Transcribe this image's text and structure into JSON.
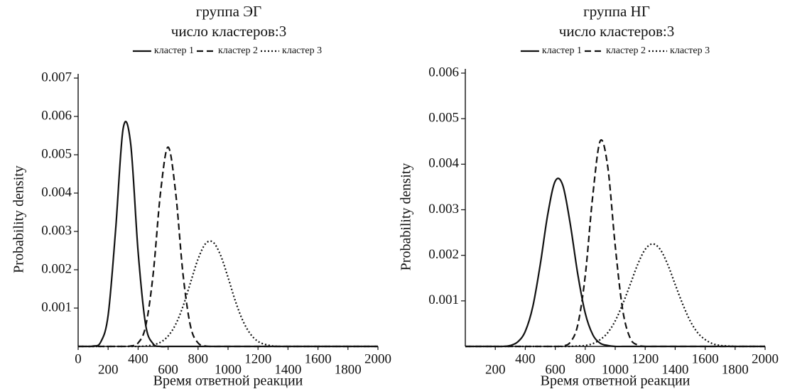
{
  "chart_data": [
    {
      "type": "line",
      "title": "группа ЭГ",
      "subtitle": "число кластеров:3",
      "x_label": "Время ответной реакции",
      "y_label": "Probability density",
      "x": [
        0,
        50,
        100,
        150,
        200,
        250,
        300,
        350,
        400,
        450,
        500,
        550,
        600,
        650,
        700,
        750,
        800,
        850,
        900,
        950,
        1000,
        1050,
        1100,
        1150,
        1200,
        1250,
        1300,
        1350,
        1400,
        1450,
        1500,
        1550,
        1600,
        1650,
        1700,
        1750,
        1800,
        1850,
        1900,
        1950,
        2000
      ],
      "series": [
        {
          "name": "кластер 1",
          "color": "#111111",
          "dash": "solid",
          "values": [
            0,
            0,
            1e-05,
            0.00011,
            0.00081,
            0.00304,
            0.00568,
            0.0053,
            0.00247,
            0.00057,
            7e-05,
            0,
            0,
            0,
            0,
            0,
            0,
            0,
            0,
            0,
            0,
            0,
            0,
            0,
            0,
            0,
            0,
            0,
            0,
            0,
            0,
            0,
            0,
            0,
            0,
            0,
            0,
            0,
            0,
            0,
            0
          ]
        },
        {
          "name": "кластер 2",
          "color": "#111111",
          "dash": "dashed",
          "values": [
            0,
            0,
            0,
            0,
            0,
            0,
            0,
            1e-05,
            9e-05,
            0.00052,
            0.00187,
            0.00403,
            0.0052,
            0.00403,
            0.00187,
            0.00052,
            9e-05,
            1e-05,
            0,
            0,
            0,
            0,
            0,
            0,
            0,
            0,
            0,
            0,
            0,
            0,
            0,
            0,
            0,
            0,
            0,
            0,
            0,
            0,
            0,
            0,
            0
          ]
        },
        {
          "name": "кластер 3",
          "color": "#111111",
          "dash": "dotted",
          "values": [
            0,
            0,
            0,
            0,
            0,
            0,
            0,
            0,
            0,
            1e-05,
            4e-05,
            0.00011,
            0.00027,
            0.00057,
            0.00105,
            0.00167,
            0.00228,
            0.00268,
            0.00272,
            0.00238,
            0.0018,
            0.00117,
            0.00066,
            0.00032,
            0.00013,
            5e-05,
            1e-05,
            0,
            0,
            0,
            0,
            0,
            0,
            0,
            0,
            0,
            0,
            0,
            0,
            0,
            0
          ]
        }
      ],
      "xlim": [
        0,
        2000
      ],
      "xticks": [
        0,
        200,
        400,
        600,
        800,
        1000,
        1200,
        1400,
        1600,
        1800,
        2000
      ],
      "ylim": [
        0,
        0.007
      ],
      "yticks": [
        0.001,
        0.002,
        0.003,
        0.004,
        0.005,
        0.006,
        0.007
      ],
      "legend": "top",
      "grid": false
    },
    {
      "type": "line",
      "title": "группа НГ",
      "subtitle": "число кластеров:3",
      "x_label": "Время ответной реакции",
      "y_label": "Probability density",
      "x": [
        0,
        50,
        100,
        150,
        200,
        250,
        300,
        350,
        400,
        450,
        500,
        550,
        600,
        650,
        700,
        750,
        800,
        850,
        900,
        950,
        1000,
        1050,
        1100,
        1150,
        1200,
        1250,
        1300,
        1350,
        1400,
        1450,
        1500,
        1550,
        1600,
        1650,
        1700,
        1750,
        1800,
        1850,
        1900,
        1950,
        2000
      ],
      "series": [
        {
          "name": "кластер 1",
          "color": "#111111",
          "dash": "solid",
          "values": [
            0,
            0,
            0,
            0,
            0,
            0,
            2e-05,
            0.0001,
            0.00033,
            0.00087,
            0.0018,
            0.0029,
            0.00363,
            0.00354,
            0.00269,
            0.00159,
            0.00073,
            0.00026,
            7e-05,
            2e-05,
            0,
            0,
            0,
            0,
            0,
            0,
            0,
            0,
            0,
            0,
            0,
            0,
            0,
            0,
            0,
            0,
            0,
            0,
            0,
            0,
            0
          ]
        },
        {
          "name": "кластер 2",
          "color": "#111111",
          "dash": "dashed",
          "values": [
            0,
            0,
            0,
            0,
            0,
            0,
            0,
            0,
            0,
            0,
            0,
            0,
            0,
            1e-05,
            9e-05,
            0.00047,
            0.00155,
            0.0033,
            0.00451,
            0.00395,
            0.00221,
            0.0008,
            0.00018,
            3e-05,
            0,
            0,
            0,
            0,
            0,
            0,
            0,
            0,
            0,
            0,
            0,
            0,
            0,
            0,
            0,
            0,
            0
          ]
        },
        {
          "name": "кластер 3",
          "color": "#111111",
          "dash": "dotted",
          "values": [
            0,
            0,
            0,
            0,
            0,
            0,
            0,
            0,
            0,
            0,
            0,
            0,
            0,
            0,
            0,
            1e-05,
            2e-05,
            6e-05,
            0.00015,
            0.0003,
            0.00056,
            0.00093,
            0.00136,
            0.0018,
            0.00213,
            0.00225,
            0.00213,
            0.0018,
            0.00136,
            0.00093,
            0.00056,
            0.0003,
            0.00015,
            6e-05,
            2e-05,
            1e-05,
            0,
            0,
            0,
            0,
            0
          ]
        }
      ],
      "xlim": [
        0,
        2000
      ],
      "xticks": [
        200,
        400,
        600,
        800,
        1000,
        1200,
        1400,
        1600,
        1800,
        2000
      ],
      "ylim": [
        0,
        0.006
      ],
      "yticks": [
        0.001,
        0.002,
        0.003,
        0.004,
        0.005,
        0.006
      ],
      "legend": "top",
      "grid": false
    }
  ]
}
